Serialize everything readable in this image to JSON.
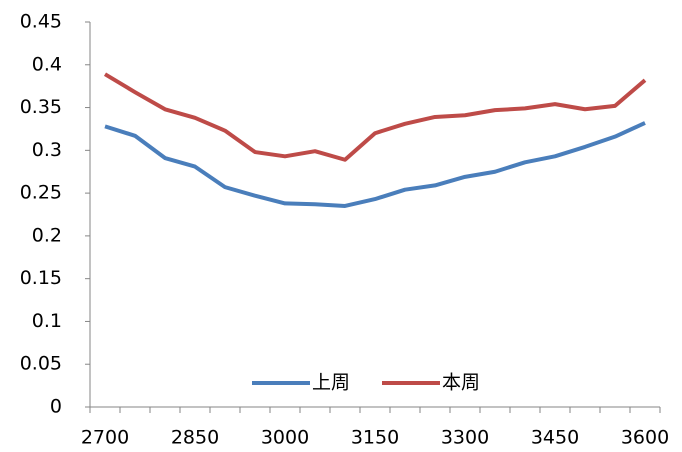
{
  "chart_data": {
    "type": "line",
    "categories": [
      "2700",
      null,
      null,
      "2850",
      null,
      null,
      "3000",
      null,
      null,
      "3150",
      null,
      null,
      "3300",
      null,
      null,
      "3450",
      null,
      null,
      "3600"
    ],
    "series": [
      {
        "name": "上周",
        "color": "#4a7ebb",
        "values": [
          0.328,
          0.317,
          0.291,
          0.281,
          0.257,
          0.247,
          0.238,
          0.237,
          0.235,
          0.243,
          0.254,
          0.259,
          0.269,
          0.275,
          0.286,
          0.293,
          0.304,
          0.316,
          0.332
        ]
      },
      {
        "name": "本周",
        "color": "#be4b48",
        "values": [
          0.389,
          0.368,
          0.348,
          0.338,
          0.323,
          0.298,
          0.293,
          0.299,
          0.289,
          0.32,
          0.331,
          0.339,
          0.341,
          0.347,
          0.349,
          0.354,
          0.348,
          0.352,
          0.382
        ]
      }
    ],
    "ylim": [
      0,
      0.45
    ],
    "yticks": [
      0,
      0.05,
      0.1,
      0.15,
      0.2,
      0.25,
      0.3,
      0.35,
      0.4,
      0.45
    ],
    "grid": false,
    "legend": "bottom"
  }
}
